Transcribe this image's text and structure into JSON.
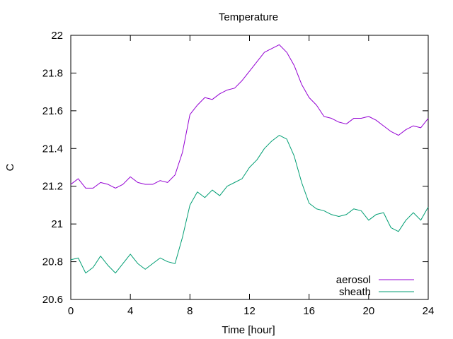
{
  "chart_data": {
    "type": "line",
    "title": "Temperature",
    "xlabel": "Time [hour]",
    "ylabel": "C",
    "xlim": [
      0,
      24
    ],
    "ylim": [
      20.6,
      22.0
    ],
    "xticks": [
      0,
      4,
      8,
      12,
      16,
      20,
      24
    ],
    "yticks": [
      20.6,
      20.8,
      21.0,
      21.2,
      21.4,
      21.6,
      21.8,
      22.0
    ],
    "xtick_labels": [
      "0",
      "4",
      "8",
      "12",
      "16",
      "20",
      "24"
    ],
    "ytick_labels": [
      "20.6",
      "20.8",
      "21",
      "21.2",
      "21.4",
      "21.6",
      "21.8",
      "22"
    ],
    "grid": false,
    "legend_position": "bottom-right",
    "series": [
      {
        "name": "aerosol",
        "color": "#9400d3",
        "x": [
          0,
          0.5,
          1,
          1.5,
          2,
          2.5,
          3,
          3.5,
          4,
          4.5,
          5,
          5.5,
          6,
          6.5,
          7,
          7.5,
          8,
          8.5,
          9,
          9.5,
          10,
          10.5,
          11,
          11.5,
          12,
          12.5,
          13,
          13.5,
          14,
          14.5,
          15,
          15.5,
          16,
          16.5,
          17,
          17.5,
          18,
          18.5,
          19,
          19.5,
          20,
          20.5,
          21,
          21.5,
          22,
          22.5,
          23,
          23.5,
          24
        ],
        "y": [
          21.21,
          21.24,
          21.19,
          21.19,
          21.22,
          21.21,
          21.19,
          21.21,
          21.25,
          21.22,
          21.21,
          21.21,
          21.23,
          21.22,
          21.26,
          21.38,
          21.58,
          21.63,
          21.67,
          21.66,
          21.69,
          21.71,
          21.72,
          21.76,
          21.81,
          21.86,
          21.91,
          21.93,
          21.95,
          21.91,
          21.84,
          21.74,
          21.67,
          21.63,
          21.57,
          21.56,
          21.54,
          21.53,
          21.56,
          21.56,
          21.57,
          21.55,
          21.52,
          21.49,
          21.47,
          21.5,
          21.52,
          21.51,
          21.56
        ]
      },
      {
        "name": "sheath",
        "color": "#009e73",
        "x": [
          0,
          0.5,
          1,
          1.5,
          2,
          2.5,
          3,
          3.5,
          4,
          4.5,
          5,
          5.5,
          6,
          6.5,
          7,
          7.5,
          8,
          8.5,
          9,
          9.5,
          10,
          10.5,
          11,
          11.5,
          12,
          12.5,
          13,
          13.5,
          14,
          14.5,
          15,
          15.5,
          16,
          16.5,
          17,
          17.5,
          18,
          18.5,
          19,
          19.5,
          20,
          20.5,
          21,
          21.5,
          22,
          22.5,
          23,
          23.5,
          24
        ],
        "y": [
          20.81,
          20.82,
          20.74,
          20.77,
          20.83,
          20.78,
          20.74,
          20.79,
          20.84,
          20.79,
          20.76,
          20.79,
          20.82,
          20.8,
          20.79,
          20.93,
          21.1,
          21.17,
          21.14,
          21.18,
          21.15,
          21.2,
          21.22,
          21.24,
          21.3,
          21.34,
          21.4,
          21.44,
          21.47,
          21.45,
          21.36,
          21.22,
          21.11,
          21.08,
          21.07,
          21.05,
          21.04,
          21.05,
          21.08,
          21.07,
          21.02,
          21.05,
          21.06,
          20.98,
          20.96,
          21.02,
          21.06,
          21.02,
          21.09
        ]
      }
    ]
  }
}
